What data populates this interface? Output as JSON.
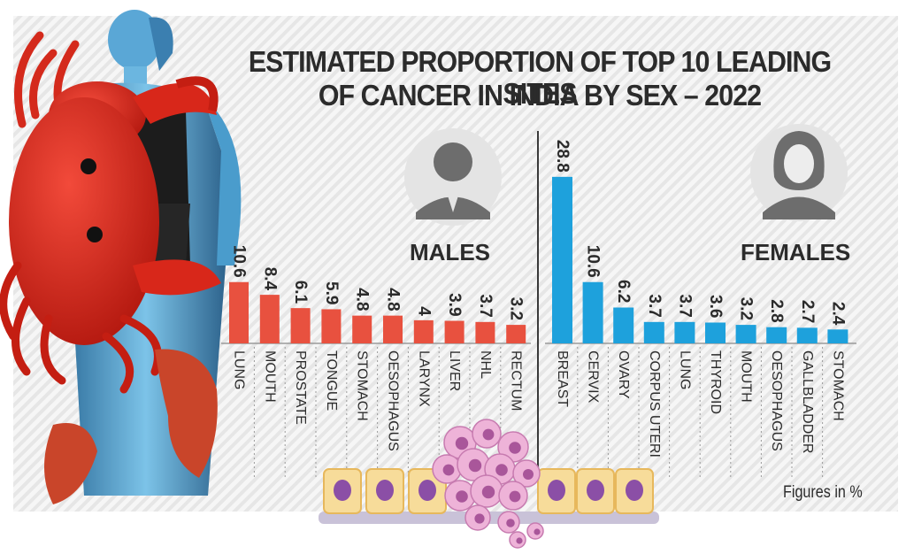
{
  "title_lines": [
    "ESTIMATED PROPORTION OF TOP 10 LEADING SITES",
    "OF CANCER IN INDIA BY SEX – 2022"
  ],
  "footnote": "Figures in %",
  "colors": {
    "male_bar": "#e8513f",
    "female_bar": "#1ea1dc",
    "text": "#2b2b2b",
    "stripe": "#e9e9e9"
  },
  "icons": {
    "male": "male-avatar-icon",
    "female": "female-avatar-icon"
  },
  "chart_data": [
    {
      "type": "bar",
      "group_label": "MALES",
      "categories": [
        "LUNG",
        "MOUTH",
        "PROSTATE",
        "TONGUE",
        "STOMACH",
        "OESOPHAGUS",
        "LARYNX",
        "LIVER",
        "NHL",
        "RECTUM"
      ],
      "values": [
        10.6,
        8.4,
        6.1,
        5.9,
        4.8,
        4.8,
        4,
        3.9,
        3.7,
        3.2
      ],
      "value_labels": [
        "10.6",
        "8.4",
        "6.1",
        "5.9",
        "4.8",
        "4.8",
        "4",
        "3.9",
        "3.7",
        "3.2"
      ],
      "color": "#e8513f",
      "ylim": [
        0,
        30
      ]
    },
    {
      "type": "bar",
      "group_label": "FEMALES",
      "categories": [
        "BREAST",
        "CERVIX",
        "OVARY",
        "CORPUS UTERI",
        "LUNG",
        "THYROID",
        "MOUTH",
        "OESOPHAGUS",
        "GALLBLADDER",
        "STOMACH"
      ],
      "values": [
        28.8,
        10.6,
        6.2,
        3.7,
        3.7,
        3.6,
        3.2,
        2.8,
        2.7,
        2.4
      ],
      "value_labels": [
        "28.8",
        "10.6",
        "6.2",
        "3.7",
        "3.7",
        "3.6",
        "3.2",
        "2.8",
        "2.7",
        "2.4"
      ],
      "color": "#1ea1dc",
      "ylim": [
        0,
        30
      ]
    }
  ]
}
